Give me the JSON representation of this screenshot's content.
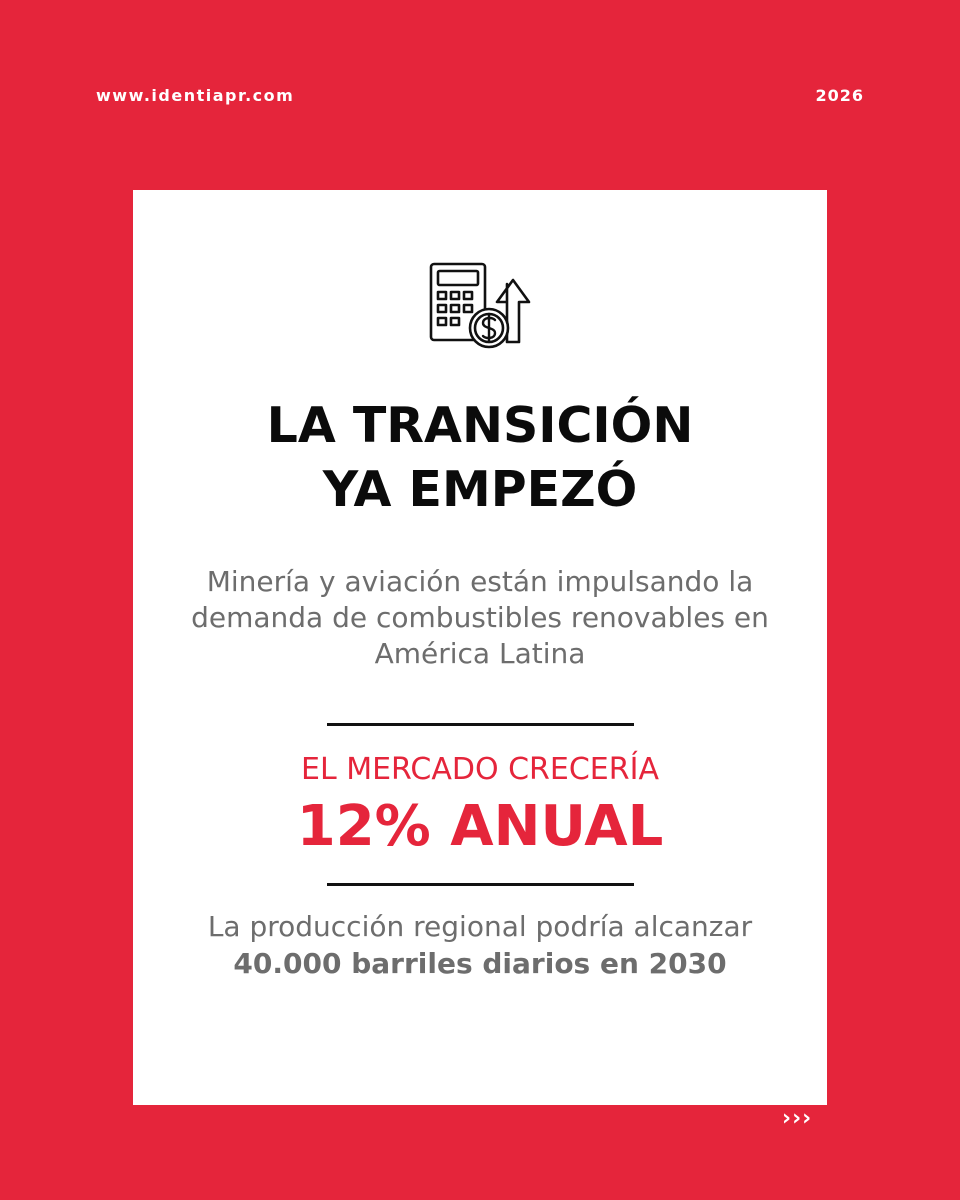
{
  "header": {
    "url": "www.identiapr.com",
    "year": "2026"
  },
  "card": {
    "icon": "calculator-dollar-arrow-up-icon",
    "title_line1": "LA TRANSICIÓN",
    "title_line2": "YA EMPEZÓ",
    "subtitle": "Minería y aviación están impulsando la demanda de combustibles renovables en América Latina",
    "market_label": "EL MERCADO CRECERÍA",
    "market_value": "12% ANUAL",
    "closing_prefix": "La producción regional podría alcanzar ",
    "closing_bold": "40.000 barriles diarios en 2030"
  },
  "footer": {
    "next_arrows": "›››"
  },
  "colors": {
    "background": "#e5253b",
    "card": "#ffffff",
    "accent": "#e5253b",
    "title": "#0b0b0b",
    "body_text": "#6d6d6d"
  }
}
